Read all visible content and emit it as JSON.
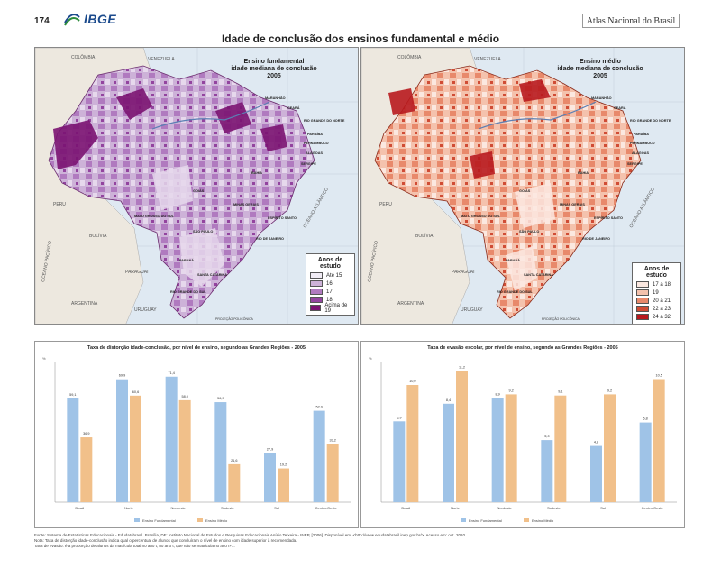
{
  "header": {
    "page_number": "174",
    "logo": "IBGE",
    "atlas": "Atlas Nacional do Brasil"
  },
  "title": "Idade de conclusão dos ensinos fundamental e médio",
  "map_left": {
    "title_lines": [
      "Ensino fundamental",
      "idade mediana de conclusão",
      "2005"
    ],
    "legend_title": "Anos de estudo",
    "legend": [
      {
        "label": "Até 15",
        "color": "#f1ecf5"
      },
      {
        "label": "16",
        "color": "#cdb2d8"
      },
      {
        "label": "17",
        "color": "#b07abf"
      },
      {
        "label": "18",
        "color": "#93449f"
      },
      {
        "label": "Acima de 19",
        "color": "#7b1372"
      }
    ]
  },
  "map_right": {
    "title_lines": [
      "Ensino médio",
      "idade mediana de conclusão",
      "2005"
    ],
    "legend_title": "Anos de estudo",
    "legend": [
      {
        "label": "17 a 18",
        "color": "#fbe8e0"
      },
      {
        "label": "19",
        "color": "#f4c2ad"
      },
      {
        "label": "20 a 21",
        "color": "#e8896b"
      },
      {
        "label": "22 a 23",
        "color": "#d04c35"
      },
      {
        "label": "24 a 32",
        "color": "#b8191e"
      }
    ]
  },
  "map_labels": {
    "countries": [
      "VENEZUELA",
      "COLÔMBIA",
      "PERU",
      "BOLÍVIA",
      "PARAGUAI",
      "URUGUAY",
      "ARGENTINA"
    ],
    "oceans": [
      "OCEANO ATLÂNTICO",
      "OCEANO PACÍFICO"
    ],
    "states_bold": [
      "MARANHÃO",
      "CEARÁ",
      "RIO GRANDE DO NORTE",
      "PARAÍBA",
      "PERNAMBUCO",
      "ALAGOAS",
      "SERGIPE",
      "BAHIA",
      "MINAS GERAIS",
      "ESPÍRITO SANTO",
      "RIO DE JANEIRO",
      "SÃO PAULO",
      "PARANÁ",
      "SANTA CATARINA",
      "RIO GRANDE DO SUL",
      "MATO GROSSO DO SUL",
      "GOIÁS"
    ],
    "projection": "PROJEÇÃO POLICÔNICA"
  },
  "chart_data": [
    {
      "type": "bar",
      "title": "Taxa de distorção idade-conclusão, por nível de ensino, segundo as Grandes Regiões - 2005",
      "ylabel": "%",
      "categories": [
        "Brasil",
        "Norte",
        "Nordeste",
        "Sudeste",
        "Sul",
        "Centro-Oeste"
      ],
      "series": [
        {
          "name": "Ensino Fundamental",
          "values": [
            59.1,
            69.9,
            71.4,
            56.9,
            27.9,
            52.0
          ],
          "color": "#9fc3e7"
        },
        {
          "name": "Ensino Médio",
          "values": [
            36.9,
            60.6,
            58.0,
            21.6,
            19.2,
            33.2
          ],
          "color": "#f1c08a"
        }
      ],
      "ylim": [
        0,
        80
      ]
    },
    {
      "type": "bar",
      "title": "Taxa de evasão escolar, por nível de ensino, segundo as Grandes Regiões - 2005",
      "ylabel": "%",
      "categories": [
        "Brasil",
        "Norte",
        "Nordeste",
        "Sudeste",
        "Sul",
        "Centro-Oeste"
      ],
      "series": [
        {
          "name": "Ensino Fundamental",
          "values": [
            6.9,
            8.4,
            8.9,
            5.3,
            4.8,
            6.8
          ],
          "color": "#9fc3e7"
        },
        {
          "name": "Ensino Médio",
          "values": [
            10.0,
            11.2,
            9.2,
            9.1,
            9.2,
            10.5
          ],
          "color": "#f1c08a"
        }
      ],
      "ylim": [
        0,
        12
      ]
    }
  ],
  "footnotes": [
    "Fonte: Sistema de Estatísticas Educacionais - Edudatabrasil. Brasília, DF: Instituto Nacional de Estudos e Pesquisas Educacionais Anísio Teixeira - INEP, [2006]. Disponível em: <http://www.edudatabrasil.inep.gov.br/>. Acesso em: out. 2010",
    "Nota: Taxa de distorção idade-conclusão indica qual o percentual de alunos que concluíram o nível de ensino com idade superior à recomendada.",
    "Taxa de evasão: é a proporção de alunos da matrícula total no ano t, no ano t, que não se matricula no ano t+1."
  ]
}
